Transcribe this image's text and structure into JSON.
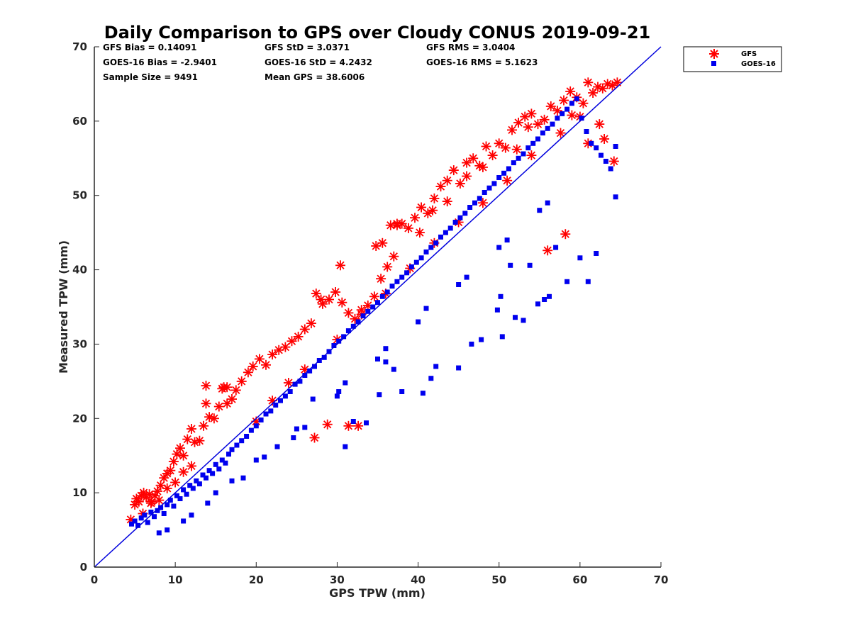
{
  "chart_data": {
    "type": "scatter",
    "title": "Daily Comparison to GPS over Cloudy CONUS 2019-09-21",
    "xlabel": "GPS TPW (mm)",
    "ylabel": "Measured TPW (mm)",
    "xlim": [
      0,
      70
    ],
    "ylim": [
      0,
      70
    ],
    "xticks": [
      "0",
      "10",
      "20",
      "30",
      "40",
      "50",
      "60",
      "70"
    ],
    "yticks": [
      "0",
      "10",
      "20",
      "30",
      "40",
      "50",
      "60",
      "70"
    ],
    "grid": false,
    "legend_position": "outside top-right",
    "reference_line": {
      "x": [
        0,
        70
      ],
      "y": [
        0,
        70
      ],
      "color": "#0000dd"
    },
    "stats": [
      [
        "GFS Bias = 0.14091",
        "GFS StD = 3.0371",
        "GFS RMS = 3.0404"
      ],
      [
        "GOES-16 Bias = -2.9401",
        "GOES-16 StD = 4.2432",
        "GOES-16 RMS = 5.1623"
      ],
      [
        "Sample Size = 9491",
        "Mean GPS = 38.6006"
      ]
    ],
    "series": [
      {
        "name": "GFS",
        "marker": "asterisk",
        "color": "#ff0000",
        "x": [
          4.5,
          5.2,
          5.5,
          5.8,
          6.1,
          6.4,
          6.8,
          7.1,
          7.5,
          7.8,
          8.2,
          8.6,
          9.0,
          9.4,
          9.8,
          10.2,
          10.6,
          11.0,
          11.5,
          12.0,
          12.4,
          13.0,
          13.5,
          13.8,
          14.2,
          14.8,
          15.4,
          16.0,
          16.4,
          17.0,
          17.5,
          18.2,
          19.0,
          19.6,
          20.4,
          21.2,
          22.0,
          22.8,
          23.6,
          24.4,
          25.2,
          26.0,
          26.8,
          27.4,
          28.2,
          29.0,
          29.8,
          30.6,
          31.4,
          32.2,
          33.0,
          33.8,
          34.6,
          35.4,
          36.2,
          37.0,
          37.4,
          38.0,
          38.8,
          39.6,
          40.4,
          41.2,
          42.0,
          42.8,
          43.6,
          44.4,
          45.2,
          46.0,
          46.8,
          47.6,
          48.4,
          49.2,
          50.0,
          50.8,
          51.6,
          52.4,
          53.2,
          54.0,
          54.8,
          55.6,
          56.4,
          57.2,
          58.0,
          58.8,
          59.6,
          60.4,
          61.0,
          61.6,
          62.2,
          62.8,
          63.4,
          64.0,
          64.6,
          63.0,
          61.0,
          58.2,
          56.0,
          27.2,
          28.8,
          31.4,
          32.6,
          13.8,
          15.8,
          16.4,
          34.8,
          35.6,
          36.6,
          37.4,
          30.4,
          28.0,
          40.2,
          41.8,
          43.6,
          46.0,
          48.0,
          52.2,
          53.6,
          57.6,
          59.0,
          60.0,
          62.4,
          64.2,
          5.0,
          6.0,
          7.0,
          8.0,
          9.0,
          10.0,
          11.0,
          12.0,
          20.0,
          22.0,
          24.0,
          26.0,
          30.0,
          33.0,
          36.0,
          39.0,
          42.0,
          45.0,
          48.0,
          51.0,
          54.0
        ],
        "y": [
          6.4,
          9.2,
          8.8,
          9.6,
          10.0,
          9.4,
          9.8,
          8.8,
          9.6,
          10.2,
          11.0,
          12.0,
          12.6,
          13.0,
          14.2,
          15.2,
          16.0,
          15.0,
          17.2,
          18.6,
          16.8,
          17.0,
          19.0,
          24.4,
          20.2,
          20.0,
          21.6,
          24.2,
          22.0,
          22.6,
          23.8,
          25.0,
          26.2,
          27.0,
          28.0,
          27.2,
          28.6,
          29.2,
          29.6,
          30.4,
          31.0,
          32.0,
          32.8,
          36.8,
          35.4,
          36.0,
          37.0,
          35.6,
          34.2,
          33.4,
          34.6,
          35.2,
          36.4,
          38.8,
          40.4,
          41.8,
          46.0,
          46.2,
          45.6,
          47.0,
          48.4,
          47.6,
          49.6,
          51.2,
          52.0,
          53.4,
          51.6,
          54.4,
          55.0,
          54.0,
          56.6,
          55.4,
          57.0,
          56.4,
          58.8,
          59.8,
          60.6,
          61.0,
          59.6,
          60.2,
          62.0,
          61.4,
          62.8,
          64.0,
          63.2,
          62.4,
          65.2,
          63.8,
          64.6,
          64.4,
          65.0,
          64.8,
          65.2,
          57.6,
          57.0,
          44.8,
          42.6,
          17.4,
          19.2,
          19.0,
          19.0,
          22.0,
          24.0,
          24.2,
          43.2,
          43.6,
          46.0,
          46.2,
          40.6,
          36.0,
          45.0,
          48.0,
          49.2,
          52.6,
          53.8,
          56.2,
          59.2,
          58.4,
          60.8,
          60.6,
          59.6,
          54.6,
          8.4,
          7.2,
          8.6,
          9.0,
          10.6,
          11.4,
          12.8,
          13.6,
          19.6,
          22.4,
          24.8,
          26.6,
          30.6,
          34.0,
          36.8,
          40.2,
          43.6,
          46.4,
          49.0,
          52.0,
          55.4
        ]
      },
      {
        "name": "GOES-16",
        "marker": "square",
        "color": "#0000ee",
        "x": [
          4.6,
          5.0,
          5.4,
          5.8,
          6.2,
          6.6,
          7.0,
          7.4,
          7.8,
          8.2,
          8.6,
          9.0,
          9.4,
          9.8,
          10.2,
          10.6,
          11.0,
          11.4,
          11.8,
          12.2,
          12.6,
          13.0,
          13.4,
          13.8,
          14.2,
          14.6,
          15.0,
          15.4,
          15.8,
          16.2,
          16.6,
          17.0,
          17.6,
          18.2,
          18.8,
          19.4,
          20.0,
          20.6,
          21.2,
          21.8,
          22.4,
          23.0,
          23.6,
          24.2,
          24.8,
          25.4,
          26.0,
          26.6,
          27.2,
          27.8,
          28.4,
          29.0,
          29.6,
          30.2,
          30.8,
          31.4,
          32.0,
          32.6,
          33.2,
          33.8,
          34.4,
          35.0,
          35.6,
          36.2,
          36.8,
          37.4,
          38.0,
          38.6,
          39.2,
          39.8,
          40.4,
          41.0,
          41.6,
          42.2,
          42.8,
          43.4,
          44.0,
          44.6,
          45.2,
          45.8,
          46.4,
          47.0,
          47.6,
          48.2,
          48.8,
          49.4,
          50.0,
          50.6,
          51.2,
          51.8,
          52.4,
          53.0,
          53.6,
          54.2,
          54.8,
          55.4,
          56.0,
          56.6,
          57.2,
          57.8,
          58.4,
          59.0,
          59.6,
          60.2,
          60.8,
          61.4,
          62.0,
          62.6,
          63.2,
          63.8,
          64.4,
          36.0,
          37.0,
          32.0,
          33.6,
          35.2,
          27.0,
          58.4,
          61.0,
          60.0,
          62.0,
          53.0,
          55.6,
          49.8,
          53.8,
          57.0,
          38.0,
          40.6,
          41.6,
          42.2,
          46.6,
          50.4,
          56.2,
          47.8,
          54.8,
          64.4,
          30.2,
          31.0,
          24.6,
          18.4,
          22.6,
          45.0,
          52.0,
          50.2,
          51.4,
          9.0,
          12.0,
          15.0,
          20.0,
          25.0,
          30.0,
          35.0,
          40.0,
          45.0,
          50.0,
          55.0,
          8.0,
          11.0,
          14.0,
          17.0,
          21.0,
          26.0,
          31.0,
          36.0,
          41.0,
          46.0,
          51.0,
          56.0
        ],
        "y": [
          5.8,
          6.2,
          5.6,
          6.6,
          7.0,
          6.0,
          7.4,
          6.8,
          7.6,
          8.0,
          7.2,
          8.4,
          9.0,
          8.2,
          9.6,
          9.2,
          10.4,
          9.8,
          11.0,
          10.6,
          11.6,
          11.2,
          12.4,
          12.0,
          13.0,
          12.6,
          13.8,
          13.2,
          14.4,
          14.0,
          15.2,
          15.8,
          16.4,
          17.0,
          17.6,
          18.4,
          19.0,
          19.8,
          20.6,
          21.0,
          21.8,
          22.4,
          23.0,
          23.6,
          24.6,
          25.0,
          25.8,
          26.4,
          27.0,
          27.8,
          28.2,
          29.0,
          29.8,
          30.4,
          31.0,
          31.8,
          32.4,
          33.0,
          33.8,
          34.4,
          35.0,
          35.6,
          36.4,
          37.0,
          37.8,
          38.4,
          39.0,
          39.6,
          40.4,
          41.0,
          41.6,
          42.4,
          43.0,
          43.6,
          44.4,
          45.0,
          45.6,
          46.4,
          47.0,
          47.6,
          48.4,
          49.0,
          49.6,
          50.4,
          51.0,
          51.6,
          52.4,
          53.0,
          53.6,
          54.4,
          55.0,
          55.6,
          56.4,
          57.0,
          57.6,
          58.4,
          59.0,
          59.6,
          60.4,
          61.0,
          61.6,
          62.4,
          63.0,
          60.4,
          58.6,
          57.0,
          56.4,
          55.4,
          54.6,
          53.6,
          56.6,
          27.6,
          26.6,
          19.6,
          19.4,
          23.2,
          22.6,
          38.4,
          38.4,
          41.6,
          42.2,
          33.2,
          36.0,
          34.6,
          40.6,
          43.0,
          23.6,
          23.4,
          25.4,
          27.0,
          30.0,
          31.0,
          36.4,
          30.6,
          35.4,
          49.8,
          23.6,
          16.2,
          17.4,
          12.0,
          16.2,
          26.8,
          33.6,
          36.4,
          40.6,
          5.0,
          7.0,
          10.0,
          14.4,
          18.6,
          23.0,
          28.0,
          33.0,
          38.0,
          43.0,
          48.0,
          4.6,
          6.2,
          8.6,
          11.6,
          14.8,
          18.8,
          24.8,
          29.4,
          34.8,
          39.0,
          44.0,
          49.0
        ]
      }
    ]
  }
}
